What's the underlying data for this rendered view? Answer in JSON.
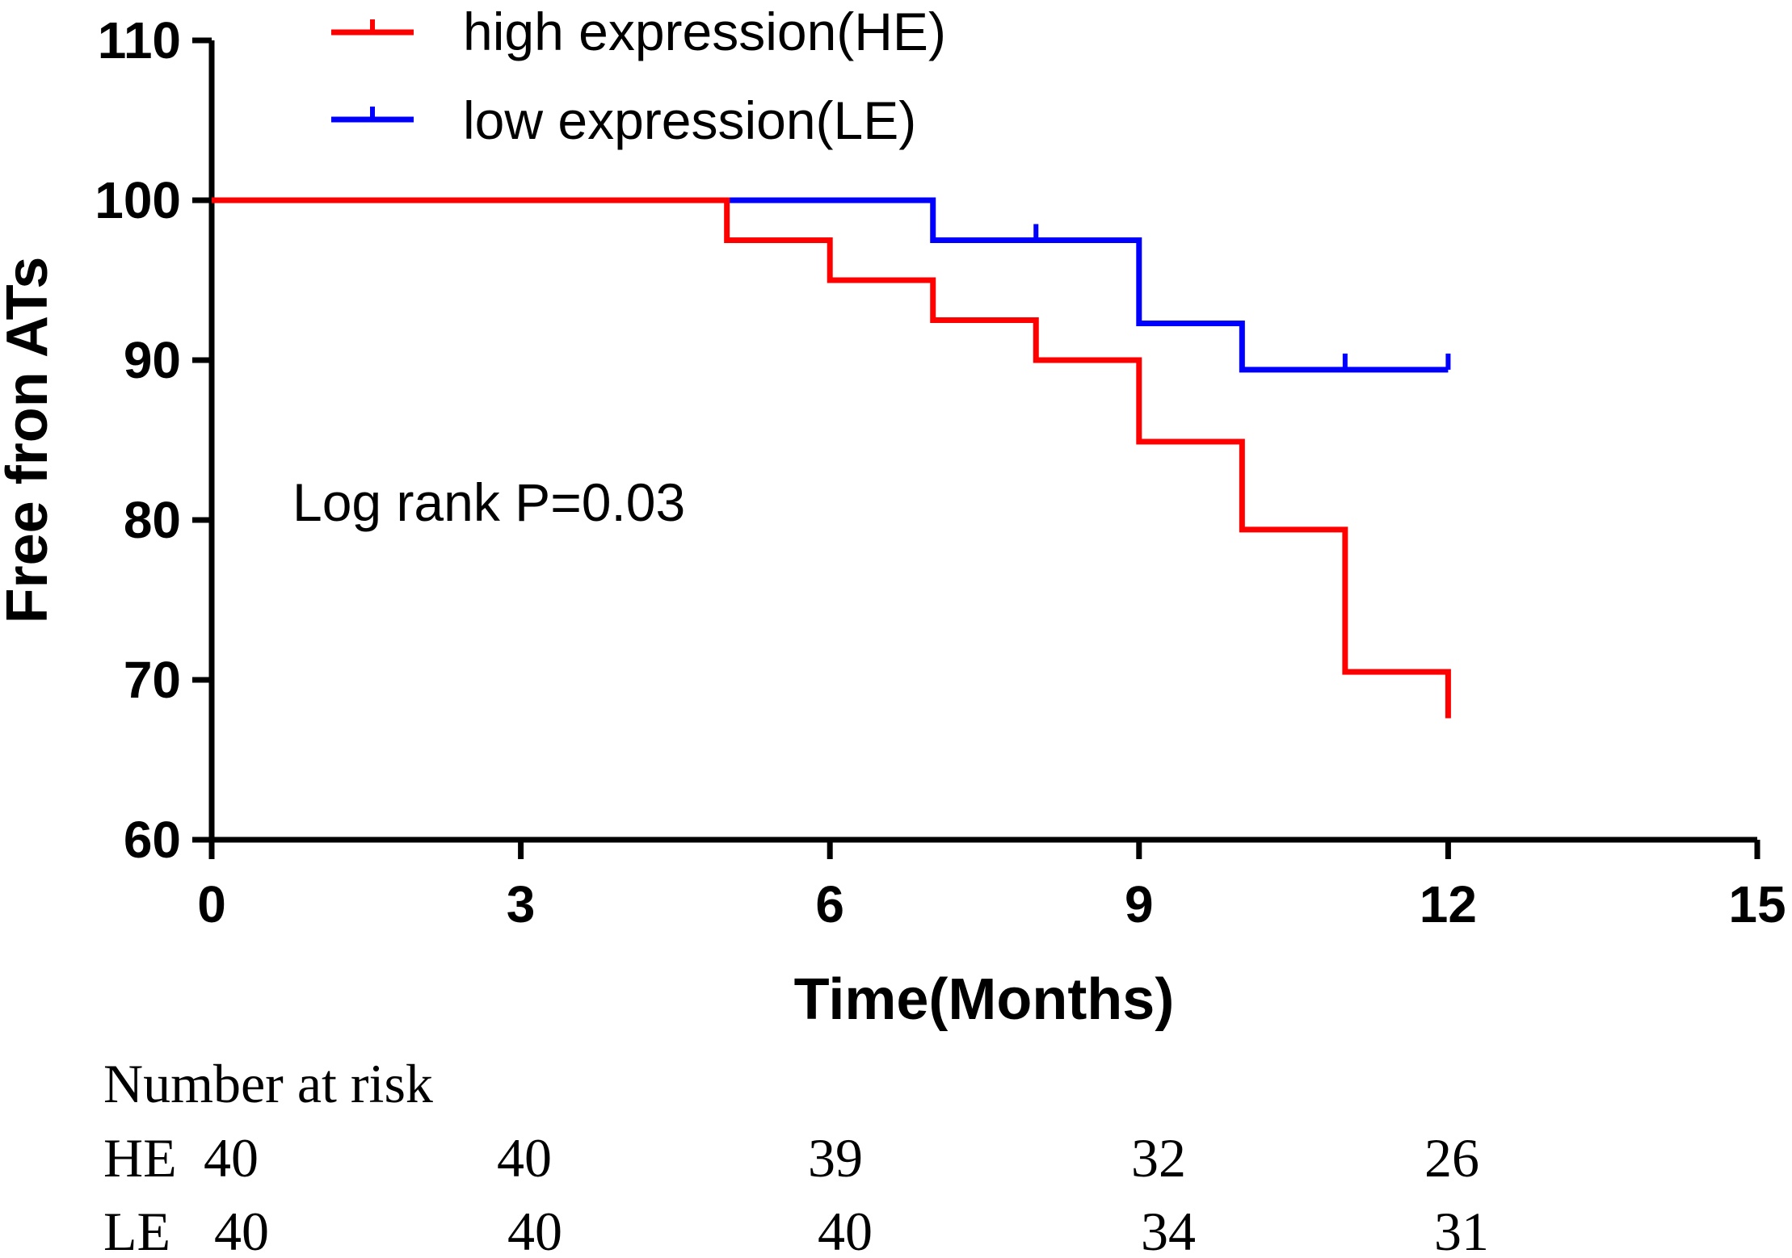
{
  "chart_data": {
    "type": "line",
    "subtype": "kaplan-meier",
    "xlabel": "Time(Months)",
    "ylabel": "Free fron ATs",
    "xlim": [
      0,
      15
    ],
    "ylim": [
      60,
      110
    ],
    "xticks": [
      0,
      3,
      6,
      9,
      12,
      15
    ],
    "yticks": [
      60,
      70,
      80,
      90,
      100,
      110
    ],
    "xtick_labels": [
      "0",
      "3",
      "6",
      "9",
      "12",
      "15"
    ],
    "ytick_labels": [
      "60",
      "70",
      "80",
      "90",
      "100",
      "110"
    ],
    "grid": false,
    "legend_position": "top",
    "annotation": "Log rank P=0.03",
    "series": [
      {
        "key": "HE",
        "name": "high expression(HE)",
        "color": "#ff0000",
        "steps": [
          [
            0,
            100
          ],
          [
            5,
            97.5
          ],
          [
            6,
            95
          ],
          [
            7,
            92.5
          ],
          [
            8,
            90
          ],
          [
            9,
            84.9
          ],
          [
            10,
            79.4
          ],
          [
            11,
            70.5
          ],
          [
            12,
            67.6
          ]
        ],
        "end_x": 12,
        "censored": []
      },
      {
        "key": "LE",
        "name": "low expression(LE)",
        "color": "#0000ff",
        "steps": [
          [
            0,
            100
          ],
          [
            7,
            97.5
          ],
          [
            9,
            92.3
          ],
          [
            10,
            89.4
          ]
        ],
        "end_x": 12,
        "censored": [
          [
            8,
            97.5
          ],
          [
            11,
            89.4
          ],
          [
            12,
            89.4
          ]
        ]
      }
    ],
    "risk_table": {
      "title": "Number at risk",
      "rows": [
        {
          "label": "HE",
          "values": [
            "40",
            "40",
            "39",
            "32",
            "26"
          ]
        },
        {
          "label": "LE",
          "values": [
            "40",
            "40",
            "40",
            "34",
            "31"
          ]
        }
      ]
    }
  }
}
